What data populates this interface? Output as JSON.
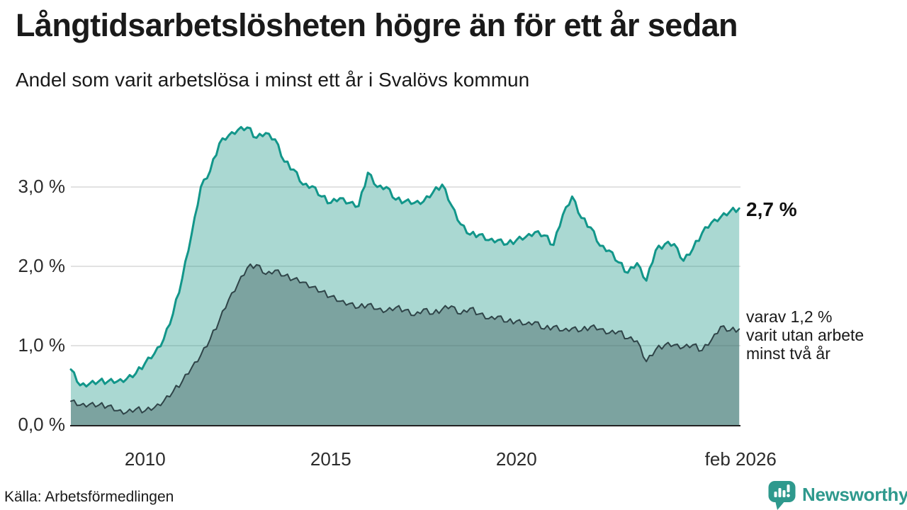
{
  "header": {
    "title": "Långtidsarbetslösheten högre än för ett år sedan",
    "subtitle": "Andel som varit arbetslösa i minst ett år i Svalövs kommun"
  },
  "chart_data": {
    "type": "area",
    "title": "Långtidsarbetslösheten högre än för ett år sedan",
    "subtitle": "Andel som varit arbetslösa i minst ett år i Svalövs kommun",
    "unit": "%",
    "grid": true,
    "x_start": 2008.0,
    "x_step": 0.25,
    "xlim": [
      2008.0,
      2026.083
    ],
    "ylim": [
      0,
      3.95
    ],
    "x_axis_ticks": [
      {
        "t": 2010.0,
        "label": "2010"
      },
      {
        "t": 2015.0,
        "label": "2015"
      },
      {
        "t": 2020.0,
        "label": "2020"
      },
      {
        "t": 2026.04,
        "label": "feb 2026"
      }
    ],
    "y_axis_ticks": [
      {
        "v": 0.0,
        "label": "0,0 %"
      },
      {
        "v": 1.0,
        "label": "1,0 %"
      },
      {
        "v": 2.0,
        "label": "2,0 %"
      },
      {
        "v": 3.0,
        "label": "3,0 %"
      }
    ],
    "series": [
      {
        "name": "Arbetslösa minst ett år",
        "latest_label": "2,7 %",
        "values": [
          0.7,
          0.5,
          0.52,
          0.55,
          0.55,
          0.55,
          0.58,
          0.65,
          0.78,
          0.9,
          1.08,
          1.4,
          1.85,
          2.4,
          3.0,
          3.2,
          3.55,
          3.65,
          3.72,
          3.75,
          3.62,
          3.68,
          3.6,
          3.32,
          3.22,
          3.03,
          3.01,
          2.88,
          2.8,
          2.86,
          2.8,
          2.76,
          3.18,
          3.0,
          3.0,
          2.84,
          2.82,
          2.8,
          2.82,
          2.93,
          3.03,
          2.77,
          2.53,
          2.4,
          2.4,
          2.33,
          2.33,
          2.28,
          2.33,
          2.37,
          2.43,
          2.39,
          2.27,
          2.65,
          2.88,
          2.61,
          2.49,
          2.26,
          2.2,
          2.05,
          1.92,
          2.04,
          1.82,
          2.2,
          2.28,
          2.28,
          2.07,
          2.22,
          2.42,
          2.55,
          2.62,
          2.69,
          2.73
        ]
      },
      {
        "name": "Varav utan arbete minst två år",
        "latest_label": "1,2 %",
        "values": [
          0.3,
          0.25,
          0.26,
          0.25,
          0.24,
          0.18,
          0.16,
          0.2,
          0.18,
          0.22,
          0.3,
          0.42,
          0.55,
          0.72,
          0.88,
          1.08,
          1.32,
          1.58,
          1.78,
          1.98,
          2.02,
          1.9,
          1.95,
          1.88,
          1.84,
          1.8,
          1.74,
          1.68,
          1.62,
          1.56,
          1.53,
          1.48,
          1.52,
          1.46,
          1.44,
          1.48,
          1.45,
          1.38,
          1.46,
          1.4,
          1.46,
          1.5,
          1.4,
          1.47,
          1.4,
          1.34,
          1.37,
          1.3,
          1.31,
          1.27,
          1.3,
          1.21,
          1.24,
          1.19,
          1.22,
          1.19,
          1.24,
          1.21,
          1.16,
          1.18,
          1.09,
          1.06,
          0.8,
          0.95,
          1.01,
          1.01,
          0.98,
          1.01,
          0.94,
          1.07,
          1.24,
          1.19,
          1.21
        ]
      }
    ]
  },
  "annotations": {
    "latest_value": "2,7 %",
    "secondary_lines": [
      "varav 1,2 %",
      "varit utan arbete",
      "minst två år"
    ]
  },
  "footer": {
    "source": "Källa: Arbetsförmedlingen",
    "brand": "Newsworthy"
  },
  "colors": {
    "line_1yr": "#12968a",
    "line_2yr": "#2f4448",
    "fill_1yr": "rgba(42,157,143,0.40)",
    "fill_2yr": "rgba(51,75,78,0.38)",
    "gridline": "#d9d9d9",
    "baseline": "#222222",
    "tick_text": "#2b2b2b",
    "brand_teal": "#2e998d"
  }
}
